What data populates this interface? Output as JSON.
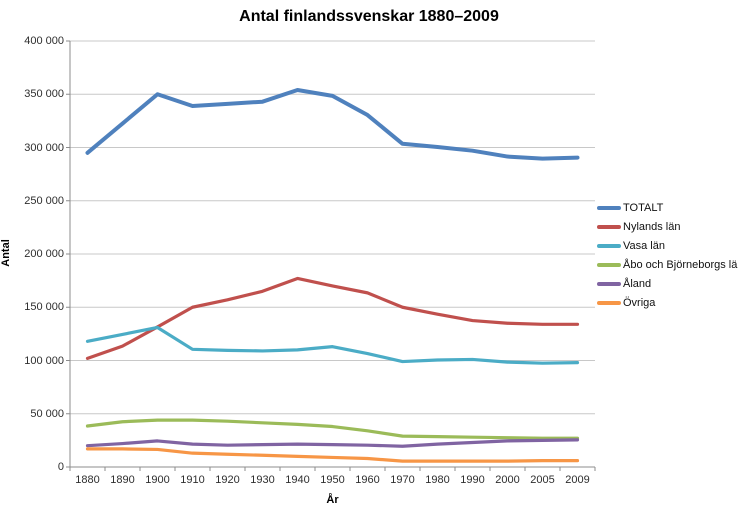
{
  "title": "Antal finlandssvenskar 1880–2009",
  "axes": {
    "y_label": "Antal",
    "x_label": "År",
    "y_tick_labels": [
      "0",
      "50 000",
      "100 000",
      "150 000",
      "200 000",
      "250 000",
      "300 000",
      "350 000",
      "400 000"
    ]
  },
  "colors": {
    "gridline": "#c8c8c8",
    "axis_line": "#8c8c8c",
    "background": "#ffffff"
  },
  "chart_data": {
    "type": "line",
    "title": "Antal finlandssvenskar 1880–2009",
    "xlabel": "År",
    "ylabel": "Antal",
    "ylim": [
      0,
      400000
    ],
    "y_tick_step": 50000,
    "grid": true,
    "legend_position": "right",
    "categories": [
      "1880",
      "1890",
      "1900",
      "1910",
      "1920",
      "1930",
      "1940",
      "1950",
      "1960",
      "1970",
      "1980",
      "1990",
      "2000",
      "2005",
      "2009"
    ],
    "series": [
      {
        "name": "TOTALT",
        "color": "#4F81BD",
        "values": [
          295000,
          322500,
          350000,
          339000,
          341000,
          343000,
          354000,
          348500,
          330500,
          303500,
          300500,
          297000,
          291500,
          289500,
          290500
        ]
      },
      {
        "name": "Nylands län",
        "color": "#C0504D",
        "values": [
          102000,
          113500,
          131500,
          150000,
          157000,
          165000,
          177000,
          170000,
          163500,
          150000,
          143500,
          137500,
          135000,
          134000,
          134000
        ]
      },
      {
        "name": "Vasa län",
        "color": "#4BACC6",
        "values": [
          118000,
          124500,
          131000,
          110500,
          109500,
          109000,
          110000,
          113000,
          106500,
          99000,
          100500,
          101000,
          98500,
          97500,
          98000
        ]
      },
      {
        "name": "Åbo och Björneborgs län",
        "color": "#9BBB59",
        "values": [
          38500,
          42500,
          44000,
          44000,
          43000,
          41500,
          40000,
          38000,
          34000,
          29000,
          28500,
          28000,
          27500,
          27000,
          27000
        ]
      },
      {
        "name": "Åland",
        "color": "#8064A2",
        "values": [
          20000,
          22000,
          24500,
          21500,
          20500,
          21000,
          21500,
          21000,
          20500,
          19500,
          21500,
          23000,
          24500,
          25000,
          25500
        ]
      },
      {
        "name": "Övriga",
        "color": "#F79646",
        "values": [
          17000,
          17000,
          16500,
          13000,
          12000,
          11000,
          10000,
          9000,
          8000,
          5500,
          5500,
          5500,
          5500,
          6000,
          6000
        ]
      }
    ]
  }
}
